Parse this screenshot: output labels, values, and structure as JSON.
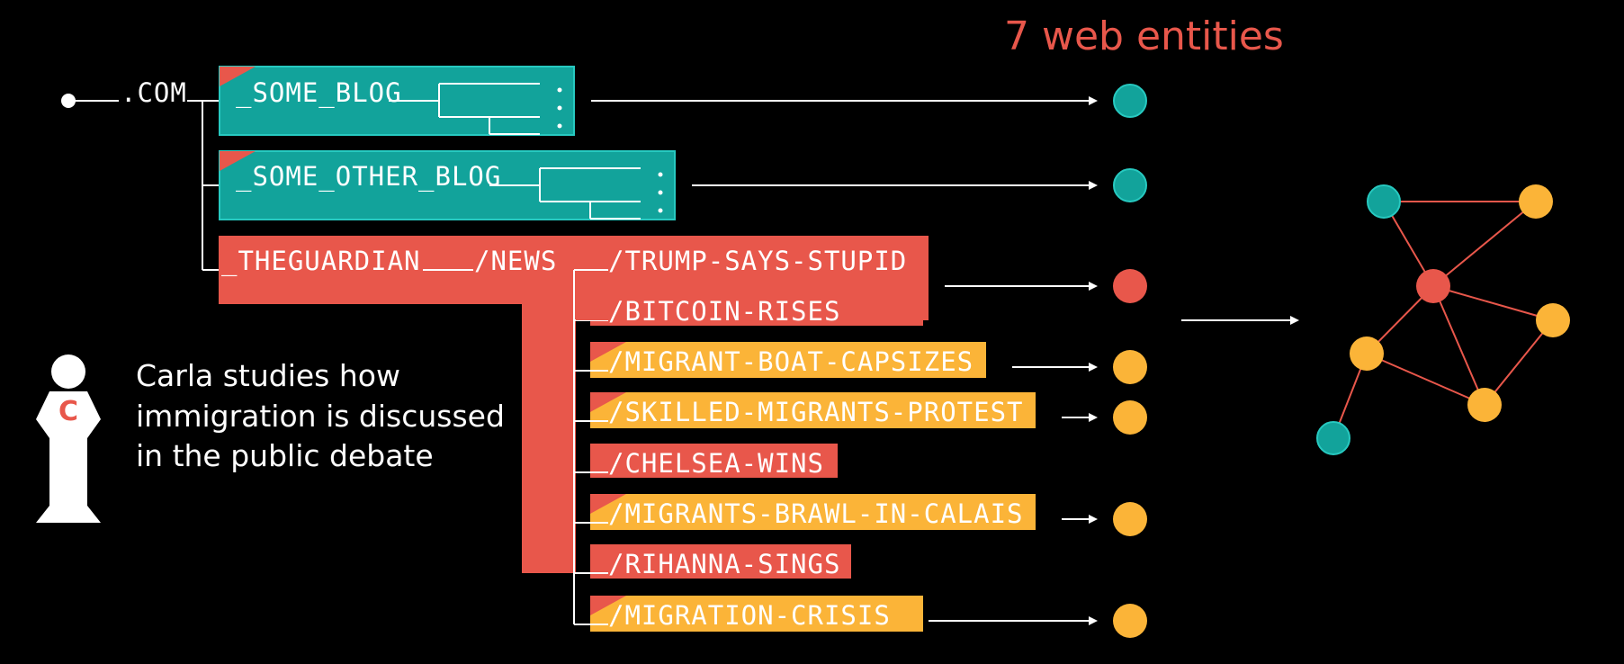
{
  "title": "7 web entities",
  "root_label": ".COM",
  "blogs": [
    {
      "label": "_SOME_BLOG"
    },
    {
      "label": "_SOME_OTHER_BLOG"
    }
  ],
  "guardian": {
    "domain_label": "_THEGUARDIAN",
    "news_label": "/NEWS",
    "articles": [
      {
        "label": "/TRUMP-SAYS-STUPID",
        "kind": "red"
      },
      {
        "label": "/BITCOIN-RISES",
        "kind": "red"
      },
      {
        "label": "/MIGRANT-BOAT-CAPSIZES",
        "kind": "yellow"
      },
      {
        "label": "/SKILLED-MIGRANTS-PROTEST",
        "kind": "yellow"
      },
      {
        "label": "/CHELSEA-WINS",
        "kind": "red"
      },
      {
        "label": "/MIGRANTS-BRAWL-IN-CALAIS",
        "kind": "yellow"
      },
      {
        "label": "/RIHANNA-SINGS",
        "kind": "red"
      },
      {
        "label": "/MIGRATION-CRISIS",
        "kind": "yellow"
      }
    ]
  },
  "person": {
    "initial": "C",
    "caption_lines": [
      "Carla studies how",
      "immigration is discussed",
      "in the public debate"
    ]
  },
  "colors": {
    "teal": "#12a39b",
    "red": "#e8574b",
    "yellow": "#fbb438",
    "white": "#ffffff",
    "background": "#000000"
  }
}
